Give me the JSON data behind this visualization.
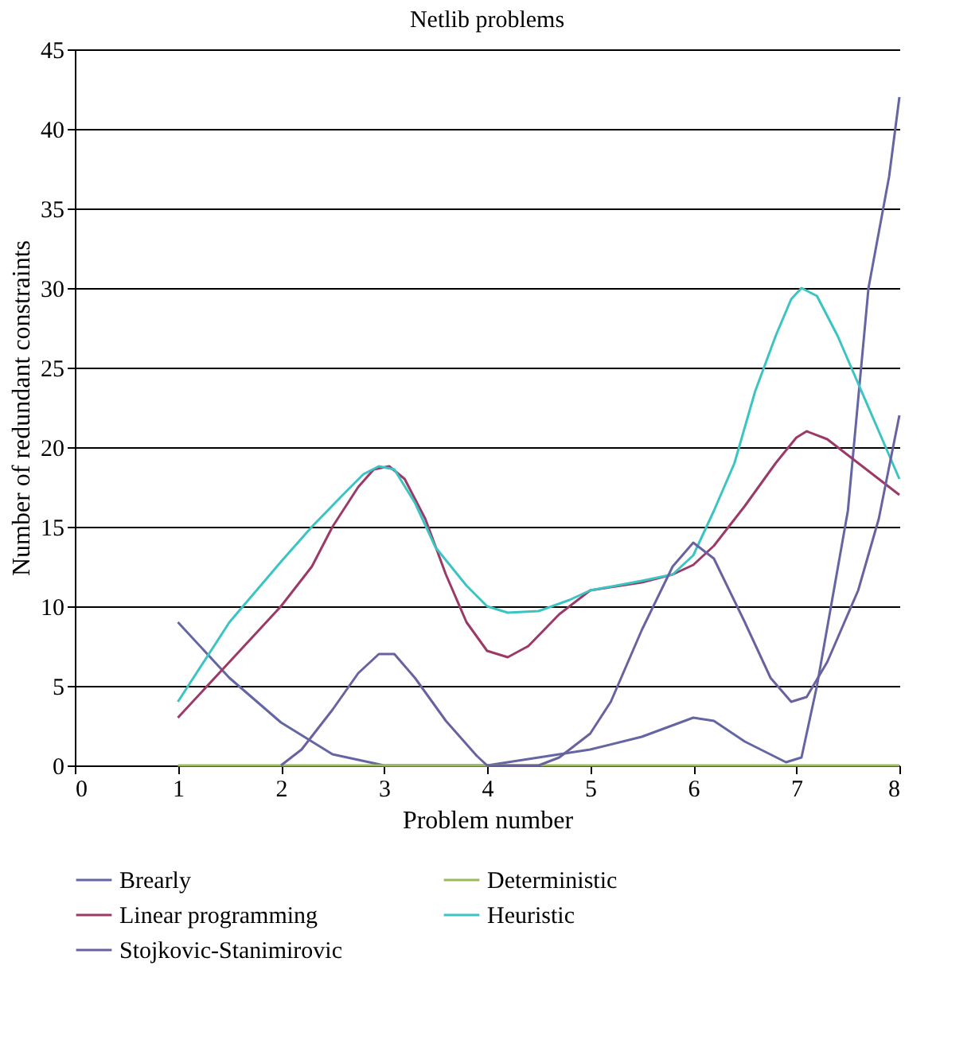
{
  "chart_data": {
    "type": "line",
    "title": "Netlib problems",
    "xlabel": "Problem number",
    "ylabel": "Number of redundant constraints",
    "xlim": [
      0,
      8
    ],
    "xticks": [
      0,
      1,
      2,
      3,
      4,
      5,
      6,
      7,
      8
    ],
    "ylim": [
      0,
      45
    ],
    "yticks": [
      0,
      5,
      10,
      15,
      20,
      25,
      30,
      35,
      40,
      45
    ],
    "grid": "y",
    "legend": "bottom",
    "marker": "none",
    "line_style": "solid",
    "series": [
      {
        "name": "Brearly",
        "color": "#6466a4",
        "x": [
          1,
          1.5,
          2,
          2.5,
          3,
          3.5,
          4,
          4.5,
          5,
          5.5,
          6,
          6.2,
          6.5,
          6.9,
          7.05,
          7.2,
          7.5,
          7.7,
          7.9,
          8
        ],
        "values": [
          9,
          5.5,
          2.7,
          0.7,
          0,
          0,
          0,
          0.5,
          1,
          1.8,
          3,
          2.8,
          1.5,
          0.2,
          0.5,
          5,
          16,
          30,
          37,
          42
        ]
      },
      {
        "name": "Deterministic",
        "color": "#9bbb59",
        "x": [
          1,
          8
        ],
        "values": [
          0,
          0
        ]
      },
      {
        "name": "Linear programming",
        "color": "#9b3a66",
        "x": [
          1,
          1.5,
          2,
          2.3,
          2.5,
          2.75,
          2.9,
          3.05,
          3.2,
          3.4,
          3.6,
          3.8,
          4,
          4.2,
          4.4,
          4.7,
          5,
          5.5,
          5.8,
          6,
          6.2,
          6.5,
          6.8,
          7,
          7.1,
          7.3,
          7.6,
          7.8,
          8
        ],
        "values": [
          3,
          6.5,
          10,
          12.5,
          15,
          17.5,
          18.6,
          18.8,
          18,
          15.5,
          12,
          9,
          7.2,
          6.8,
          7.5,
          9.5,
          11,
          11.5,
          12,
          12.6,
          13.8,
          16.3,
          19,
          20.6,
          21,
          20.5,
          19,
          18,
          17
        ]
      },
      {
        "name": "Heuristic",
        "color": "#3cc4c4",
        "x": [
          1,
          1.5,
          2,
          2.3,
          2.6,
          2.8,
          2.95,
          3.1,
          3.3,
          3.5,
          3.8,
          4,
          4.2,
          4.5,
          4.8,
          5,
          5.5,
          5.8,
          6,
          6.2,
          6.4,
          6.6,
          6.8,
          6.95,
          7.05,
          7.2,
          7.4,
          7.6,
          7.8,
          8
        ],
        "values": [
          4,
          9,
          12.8,
          15,
          17,
          18.3,
          18.8,
          18.6,
          16.5,
          13.7,
          11.3,
          10,
          9.6,
          9.7,
          10.4,
          11,
          11.6,
          12,
          13.2,
          16,
          19,
          23.5,
          27,
          29.3,
          30,
          29.5,
          27,
          24,
          21,
          18
        ]
      },
      {
        "name": "Stojkovic-Stanimirovic",
        "color": "#6a62a0",
        "x": [
          2,
          2.2,
          2.5,
          2.75,
          2.95,
          3.1,
          3.3,
          3.6,
          3.9,
          4,
          4.5,
          4.7,
          5,
          5.2,
          5.5,
          5.8,
          6,
          6.2,
          6.5,
          6.75,
          6.95,
          7.1,
          7.3,
          7.6,
          7.8,
          8
        ],
        "values": [
          0,
          1,
          3.5,
          5.8,
          7,
          7,
          5.5,
          2.8,
          0.6,
          0,
          0,
          0.5,
          2,
          4,
          8.5,
          12.5,
          14,
          13,
          9,
          5.5,
          4,
          4.3,
          6.5,
          11,
          15.5,
          22
        ]
      }
    ]
  }
}
